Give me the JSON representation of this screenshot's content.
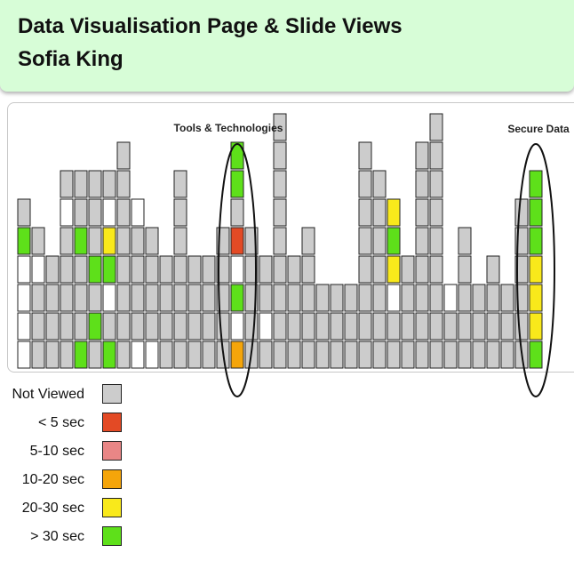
{
  "header": {
    "title": "Data Visualisation Page & Slide Views",
    "author": "Sofia King"
  },
  "colors": {
    "not_viewed": "#cccccc",
    "lt5": "#e34a25",
    "s5_10": "#e98686",
    "s10_20": "#f5a50a",
    "s20_30": "#f9e91b",
    "gt30": "#5ee01a",
    "blank": "#ffffff"
  },
  "legend": [
    {
      "label": "Not Viewed",
      "color_key": "not_viewed"
    },
    {
      "label": "< 5 sec",
      "color_key": "lt5"
    },
    {
      "label": "5-10 sec",
      "color_key": "s5_10"
    },
    {
      "label": "10-20 sec",
      "color_key": "s10_20"
    },
    {
      "label": "20-30 sec",
      "color_key": "s20_30"
    },
    {
      "label": "> 30 sec",
      "color_key": "gt30"
    }
  ],
  "chart_data": {
    "type": "heatmap",
    "description_codes": {
      "N": "Not Viewed",
      "W": "blank",
      "G": "> 30 sec",
      "Y": "20-30 sec",
      "O": "10-20 sec",
      "R": "< 5 sec"
    },
    "columns": [
      [
        "W",
        "W",
        "W",
        "W",
        "G",
        "N"
      ],
      [
        "N",
        "N",
        "N",
        "W",
        "N"
      ],
      [
        "N",
        "N",
        "N",
        "N"
      ],
      [
        "N",
        "N",
        "N",
        "N",
        "N",
        "W",
        "N"
      ],
      [
        "G",
        "N",
        "N",
        "N",
        "G",
        "N",
        "N"
      ],
      [
        "N",
        "G",
        "N",
        "G",
        "N",
        "N",
        "N"
      ],
      [
        "G",
        "N",
        "W",
        "G",
        "Y",
        "W",
        "N"
      ],
      [
        "N",
        "N",
        "N",
        "N",
        "N",
        "N",
        "N",
        "N"
      ],
      [
        "W",
        "N",
        "N",
        "N",
        "N",
        "W"
      ],
      [
        "W",
        "N",
        "N",
        "N",
        "N"
      ],
      [
        "N",
        "N",
        "N",
        "N"
      ],
      [
        "N",
        "N",
        "N",
        "N",
        "N",
        "N",
        "N"
      ],
      [
        "N",
        "N",
        "N",
        "N"
      ],
      [
        "N",
        "N",
        "N",
        "N"
      ],
      [
        "N",
        "N",
        "N",
        "N",
        "N"
      ],
      [
        "O",
        "W",
        "G",
        "W",
        "R",
        "N",
        "G",
        "G"
      ],
      [
        "N",
        "N",
        "N",
        "N",
        "N"
      ],
      [
        "N",
        "W",
        "N",
        "N"
      ],
      [
        "N",
        "N",
        "N",
        "N",
        "N",
        "N",
        "N",
        "N",
        "N"
      ],
      [
        "N",
        "N",
        "N",
        "N"
      ],
      [
        "N",
        "N",
        "N",
        "N",
        "N"
      ],
      [
        "N",
        "N",
        "N"
      ],
      [
        "N",
        "N",
        "N"
      ],
      [
        "N",
        "N",
        "N"
      ],
      [
        "N",
        "N",
        "N",
        "N",
        "N",
        "N",
        "N",
        "N"
      ],
      [
        "N",
        "N",
        "N",
        "N",
        "N",
        "N",
        "N"
      ],
      [
        "N",
        "N",
        "W",
        "Y",
        "G",
        "Y"
      ],
      [
        "N",
        "N",
        "N",
        "N"
      ],
      [
        "N",
        "N",
        "N",
        "N",
        "N",
        "N",
        "N",
        "N"
      ],
      [
        "N",
        "N",
        "N",
        "N",
        "N",
        "N",
        "N",
        "N",
        "N"
      ],
      [
        "N",
        "N",
        "W"
      ],
      [
        "N",
        "N",
        "N",
        "N",
        "N"
      ],
      [
        "N",
        "N",
        "N"
      ],
      [
        "N",
        "N",
        "N",
        "N"
      ],
      [
        "N",
        "N",
        "N"
      ],
      [
        "N",
        "N",
        "N",
        "N",
        "N",
        "N"
      ],
      [
        "G",
        "Y",
        "Y",
        "Y",
        "G",
        "G",
        "G"
      ]
    ],
    "annotations": [
      {
        "label": "Tools & Technologies",
        "column": 15
      },
      {
        "label": "Secure Data",
        "column": 36
      }
    ]
  }
}
